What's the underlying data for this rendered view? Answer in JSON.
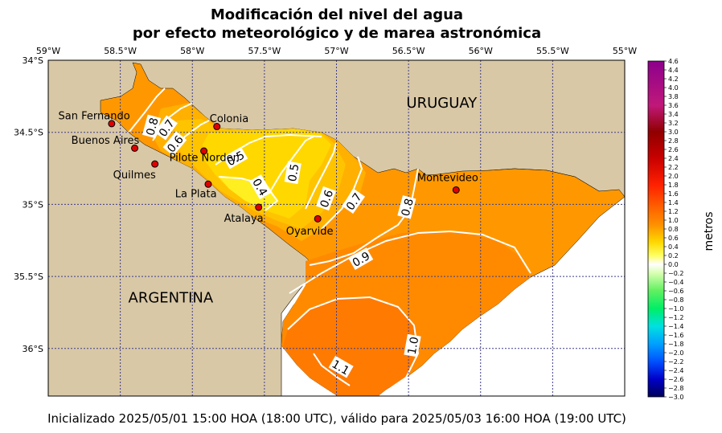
{
  "title_line1": "Modificación del nivel del agua",
  "title_line2": "por efecto meteorológico y de marea astronómica",
  "footer": "Inicializado 2025/05/01 15:00 HOA (18:00 UTC), válido para 2025/05/03 16:00 HOA (19:00 UTC)",
  "colors": {
    "land": "#d9c8a6",
    "sea_blank": "#ffffff",
    "contour_line": "#ffffff",
    "grid": "#3c3c8c",
    "city_marker": "#e00000"
  },
  "map": {
    "lon_range": [
      -59,
      -55
    ],
    "lat_range": [
      -36.33,
      -34
    ],
    "lon_ticks": [
      {
        "value": -59,
        "label": "59°W"
      },
      {
        "value": -58.5,
        "label": "58.5°W"
      },
      {
        "value": -58,
        "label": "58°W"
      },
      {
        "value": -57.5,
        "label": "57.5°W"
      },
      {
        "value": -57,
        "label": "57°W"
      },
      {
        "value": -56.5,
        "label": "56.5°W"
      },
      {
        "value": -56,
        "label": "56°W"
      },
      {
        "value": -55.5,
        "label": "55.5°W"
      },
      {
        "value": -55,
        "label": "55°W"
      }
    ],
    "lat_ticks": [
      {
        "value": -34,
        "label": "34°S"
      },
      {
        "value": -34.5,
        "label": "34.5°S"
      },
      {
        "value": -35,
        "label": "35°S"
      },
      {
        "value": -35.5,
        "label": "35.5°S"
      },
      {
        "value": -36,
        "label": "36°S"
      }
    ],
    "countries": [
      {
        "name": "URUGUAY",
        "lon": -56.27,
        "lat": -34.33
      },
      {
        "name": "ARGENTINA",
        "lon": -58.15,
        "lat": -35.68
      }
    ],
    "cities": [
      {
        "name": "San Fernando",
        "lon": -58.56,
        "lat": -34.44,
        "label_lon": -58.93,
        "label_lat": -34.41
      },
      {
        "name": "Buenos Aires",
        "lon": -58.4,
        "lat": -34.61,
        "label_lon": -58.84,
        "label_lat": -34.58
      },
      {
        "name": "Colonia",
        "lon": -57.83,
        "lat": -34.46,
        "label_lon": -57.88,
        "label_lat": -34.43
      },
      {
        "name": "Pilote Norden",
        "lon": -57.92,
        "lat": -34.63,
        "label_lon": -58.16,
        "label_lat": -34.7
      },
      {
        "name": "Quilmes",
        "lon": -58.26,
        "lat": -34.72,
        "label_lon": -58.55,
        "label_lat": -34.82
      },
      {
        "name": "La Plata",
        "lon": -57.89,
        "lat": -34.86,
        "label_lon": -58.12,
        "label_lat": -34.95
      },
      {
        "name": "Atalaya",
        "lon": -57.54,
        "lat": -35.02,
        "label_lon": -57.78,
        "label_lat": -35.12
      },
      {
        "name": "Oyarvide",
        "lon": -57.13,
        "lat": -35.1,
        "label_lon": -57.35,
        "label_lat": -35.21
      },
      {
        "name": "Montevideo",
        "lon": -56.17,
        "lat": -34.9,
        "label_lon": -56.44,
        "label_lat": -34.84
      }
    ],
    "contour_labels": [
      {
        "text": "0.8",
        "lon": -58.28,
        "lat": -34.46,
        "angle": -75
      },
      {
        "text": "0.7",
        "lon": -58.18,
        "lat": -34.47,
        "angle": -55
      },
      {
        "text": "0.6",
        "lon": -58.12,
        "lat": -34.58,
        "angle": -50
      },
      {
        "text": "0.5",
        "lon": -57.7,
        "lat": -34.68,
        "angle": -30
      },
      {
        "text": "0.4",
        "lon": -57.53,
        "lat": -34.88,
        "angle": 60
      },
      {
        "text": "0.5",
        "lon": -57.3,
        "lat": -34.78,
        "angle": -80
      },
      {
        "text": "0.6",
        "lon": -57.07,
        "lat": -34.96,
        "angle": -70
      },
      {
        "text": "0.7",
        "lon": -56.88,
        "lat": -34.98,
        "angle": -55
      },
      {
        "text": "0.8",
        "lon": -56.51,
        "lat": -35.02,
        "angle": -75
      },
      {
        "text": "0.9",
        "lon": -56.83,
        "lat": -35.38,
        "angle": -30
      },
      {
        "text": "1.0",
        "lon": -56.47,
        "lat": -35.98,
        "angle": -80
      },
      {
        "text": "1.1",
        "lon": -56.97,
        "lat": -36.13,
        "angle": 30
      }
    ]
  },
  "colorbar": {
    "label": "metros",
    "min": -3.0,
    "max": 4.6,
    "step": 0.2,
    "stops": [
      {
        "v": -3.0,
        "c": "#00005a"
      },
      {
        "v": -2.6,
        "c": "#0000c8"
      },
      {
        "v": -2.2,
        "c": "#0050ff"
      },
      {
        "v": -1.8,
        "c": "#00a0ff"
      },
      {
        "v": -1.4,
        "c": "#00e0e0"
      },
      {
        "v": -1.0,
        "c": "#00ee66"
      },
      {
        "v": -0.6,
        "c": "#60f060"
      },
      {
        "v": -0.2,
        "c": "#d8ffb0"
      },
      {
        "v": 0.0,
        "c": "#ffffff"
      },
      {
        "v": 0.2,
        "c": "#ffff60"
      },
      {
        "v": 0.5,
        "c": "#ffd800"
      },
      {
        "v": 0.9,
        "c": "#ff9000"
      },
      {
        "v": 1.3,
        "c": "#ff6000"
      },
      {
        "v": 1.8,
        "c": "#ff2000"
      },
      {
        "v": 2.4,
        "c": "#c80000"
      },
      {
        "v": 3.0,
        "c": "#900000"
      },
      {
        "v": 3.6,
        "c": "#c0187a"
      },
      {
        "v": 4.6,
        "c": "#8c008c"
      }
    ]
  }
}
